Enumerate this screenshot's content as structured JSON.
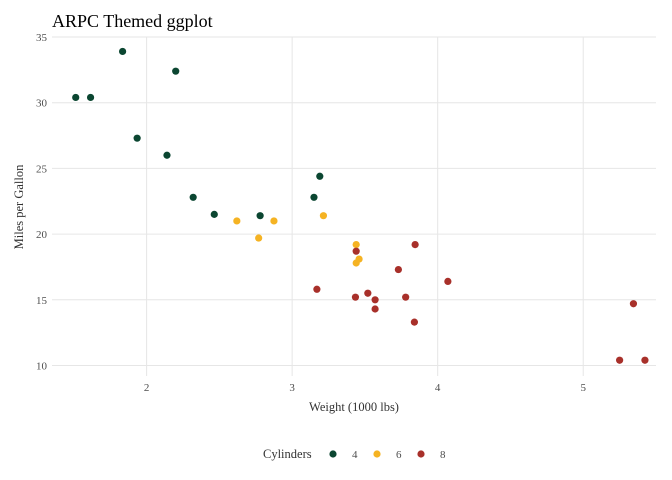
{
  "chart_data": {
    "type": "scatter",
    "title": "ARPC Themed ggplot",
    "xlabel": "Weight (1000 lbs)",
    "ylabel": "Miles per Gallon",
    "xlim": [
      1.35,
      5.5
    ],
    "ylim": [
      9.2,
      35
    ],
    "x_ticks": [
      2,
      3,
      4,
      5
    ],
    "y_ticks": [
      10,
      15,
      20,
      25,
      30,
      35
    ],
    "grid": true,
    "legend": {
      "title": "Cylinders",
      "placement": "bottom"
    },
    "series": [
      {
        "name": "4",
        "color": "#0b4631",
        "points": [
          {
            "x": 2.32,
            "y": 22.8
          },
          {
            "x": 3.19,
            "y": 24.4
          },
          {
            "x": 3.15,
            "y": 22.8
          },
          {
            "x": 2.2,
            "y": 32.4
          },
          {
            "x": 1.615,
            "y": 30.4
          },
          {
            "x": 1.835,
            "y": 33.9
          },
          {
            "x": 2.465,
            "y": 21.5
          },
          {
            "x": 1.935,
            "y": 27.3
          },
          {
            "x": 2.14,
            "y": 26.0
          },
          {
            "x": 1.513,
            "y": 30.4
          },
          {
            "x": 2.78,
            "y": 21.4
          }
        ]
      },
      {
        "name": "6",
        "color": "#f5b323",
        "points": [
          {
            "x": 2.62,
            "y": 21.0
          },
          {
            "x": 2.875,
            "y": 21.0
          },
          {
            "x": 3.215,
            "y": 21.4
          },
          {
            "x": 3.46,
            "y": 18.1
          },
          {
            "x": 3.44,
            "y": 19.2
          },
          {
            "x": 3.44,
            "y": 17.8
          },
          {
            "x": 2.77,
            "y": 19.7
          }
        ]
      },
      {
        "name": "8",
        "color": "#a8302a",
        "points": [
          {
            "x": 3.44,
            "y": 18.7
          },
          {
            "x": 3.57,
            "y": 14.3
          },
          {
            "x": 4.07,
            "y": 16.4
          },
          {
            "x": 3.73,
            "y": 17.3
          },
          {
            "x": 3.78,
            "y": 15.2
          },
          {
            "x": 5.25,
            "y": 10.4
          },
          {
            "x": 5.424,
            "y": 10.4
          },
          {
            "x": 5.345,
            "y": 14.7
          },
          {
            "x": 3.52,
            "y": 15.5
          },
          {
            "x": 3.435,
            "y": 15.2
          },
          {
            "x": 3.84,
            "y": 13.3
          },
          {
            "x": 3.845,
            "y": 19.2
          },
          {
            "x": 3.17,
            "y": 15.8
          },
          {
            "x": 3.57,
            "y": 15.0
          }
        ]
      }
    ]
  }
}
